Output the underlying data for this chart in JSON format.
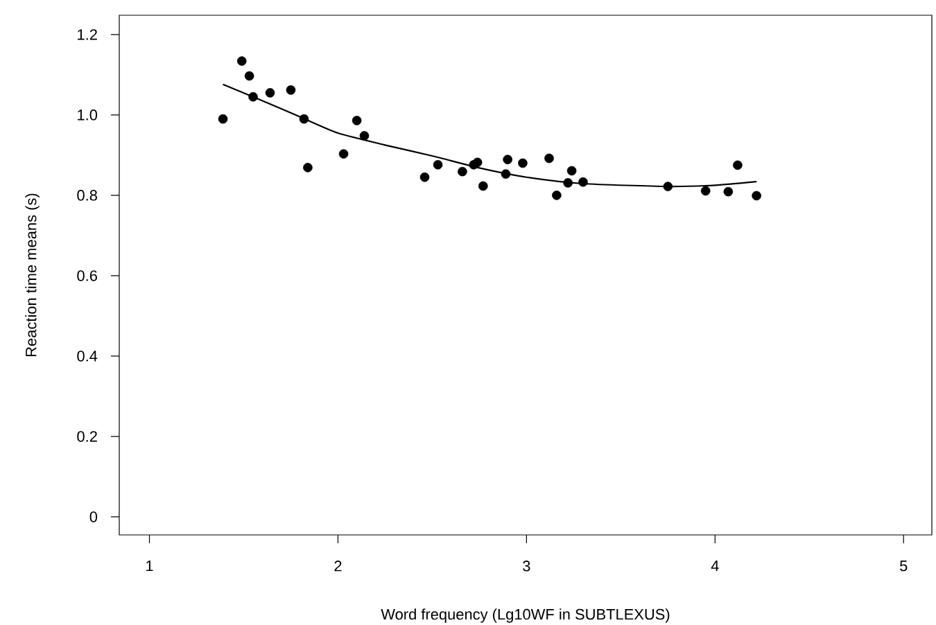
{
  "chart_data": {
    "type": "scatter",
    "xlabel": "Word frequency (Lg10WF in SUBTLEXUS)",
    "ylabel": "Reaction time means (s)",
    "xlim": [
      0.84,
      5.15
    ],
    "ylim": [
      -0.045,
      1.248
    ],
    "xticks": [
      1,
      2,
      3,
      4,
      5
    ],
    "yticks": [
      0,
      0.2,
      0.4,
      0.6,
      0.8,
      {
        "value": 1,
        "label": "1.0"
      },
      1.2
    ],
    "grid": false,
    "series": [
      {
        "marker": "circle",
        "color": "#000000",
        "x": [
          1.39,
          1.49,
          1.53,
          1.55,
          1.64,
          1.75,
          1.82,
          1.84,
          2.03,
          2.1,
          2.14,
          2.46,
          2.53,
          2.66,
          2.72,
          2.74,
          2.77,
          2.89,
          2.9,
          2.98,
          3.12,
          3.16,
          3.22,
          3.24,
          3.3,
          3.75,
          3.95,
          4.07,
          4.12,
          4.22
        ],
        "values": [
          0.99,
          1.134,
          1.097,
          1.045,
          1.055,
          1.062,
          0.99,
          0.869,
          0.903,
          0.986,
          0.948,
          0.845,
          0.876,
          0.859,
          0.876,
          0.882,
          0.823,
          0.853,
          0.889,
          0.88,
          0.892,
          0.8,
          0.831,
          0.861,
          0.833,
          0.822,
          0.811,
          0.809,
          0.875,
          0.799
        ]
      },
      {
        "type": "line",
        "marker": "none",
        "line_style": "solid",
        "color": "#000000",
        "x": [
          1.39,
          1.6,
          1.8,
          2.0,
          2.25,
          2.5,
          2.75,
          3.0,
          3.3,
          3.75,
          4.0,
          4.22
        ],
        "values": [
          1.076,
          1.035,
          0.995,
          0.955,
          0.925,
          0.898,
          0.868,
          0.845,
          0.829,
          0.822,
          0.825,
          0.834
        ]
      }
    ]
  }
}
